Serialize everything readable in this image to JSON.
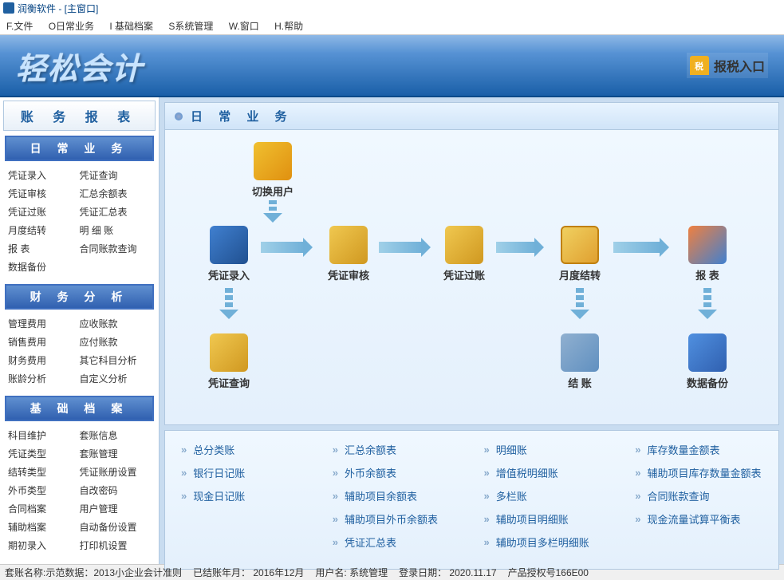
{
  "window": {
    "title": "润衡软件 - [主窗口]"
  },
  "menu": {
    "file": "F.文件",
    "daily": "O日常业务",
    "base": "I 基础档案",
    "sys": "S系统管理",
    "win": "W.窗口",
    "help": "H.帮助"
  },
  "banner": {
    "app_title": "轻松会计",
    "tax_label": "报税入口"
  },
  "sidebar": {
    "title": "账 务 报 表",
    "sections": [
      {
        "header": "日 常 业 务",
        "rows": [
          [
            "凭证录入",
            "凭证查询"
          ],
          [
            "凭证审核",
            "汇总余额表"
          ],
          [
            "凭证过账",
            "凭证汇总表"
          ],
          [
            "月度结转",
            "明 细 账"
          ],
          [
            "报    表",
            "合同账款查询"
          ],
          [
            "数据备份",
            ""
          ]
        ]
      },
      {
        "header": "财 务 分 析",
        "rows": [
          [
            "管理费用",
            "应收账款"
          ],
          [
            "销售费用",
            "应付账款"
          ],
          [
            "财务费用",
            "其它科目分析"
          ],
          [
            "账龄分析",
            "自定义分析"
          ]
        ]
      },
      {
        "header": "基 础 档 案",
        "rows": [
          [
            "科目维护",
            "套账信息"
          ],
          [
            "凭证类型",
            "套账管理"
          ],
          [
            "结转类型",
            "凭证账册设置"
          ],
          [
            "外币类型",
            "自改密码"
          ],
          [
            "合同档案",
            "用户管理"
          ],
          [
            "辅助档案",
            "自动备份设置"
          ],
          [
            "期初录入",
            "打印机设置"
          ]
        ]
      }
    ]
  },
  "content": {
    "header_title": "日 常 业 务",
    "workflow": {
      "nodes": {
        "switch_user": "切换用户",
        "entry": "凭证录入",
        "audit": "凭证审核",
        "post": "凭证过账",
        "month": "月度结转",
        "report": "报  表",
        "query": "凭证查询",
        "settle": "结  账",
        "backup": "数据备份"
      }
    },
    "links": {
      "col1": [
        "总分类账",
        "银行日记账",
        "现金日记账"
      ],
      "col2": [
        "汇总余额表",
        "外币余额表",
        "辅助项目余额表",
        "辅助项目外币余额表",
        "凭证汇总表"
      ],
      "col3": [
        "明细账",
        "增值税明细账",
        "多栏账",
        "辅助项目明细账",
        "辅助项目多栏明细账"
      ],
      "col4": [
        "库存数量金额表",
        "辅助项目库存数量金额表",
        "合同账款查询",
        "现金流量试算平衡表"
      ]
    }
  },
  "status": {
    "a": "套账名称:示范数据：2013小企业会计准则",
    "b": "已结账年月： 2016年12月",
    "c": "用户名: 系统管理",
    "d": "登录日期： 2020.11.17",
    "e": "产品授权号166E00"
  },
  "colors": {
    "primary": "#2060a0",
    "banner_dark": "#1a5fa8",
    "accent": "#f0b020"
  }
}
